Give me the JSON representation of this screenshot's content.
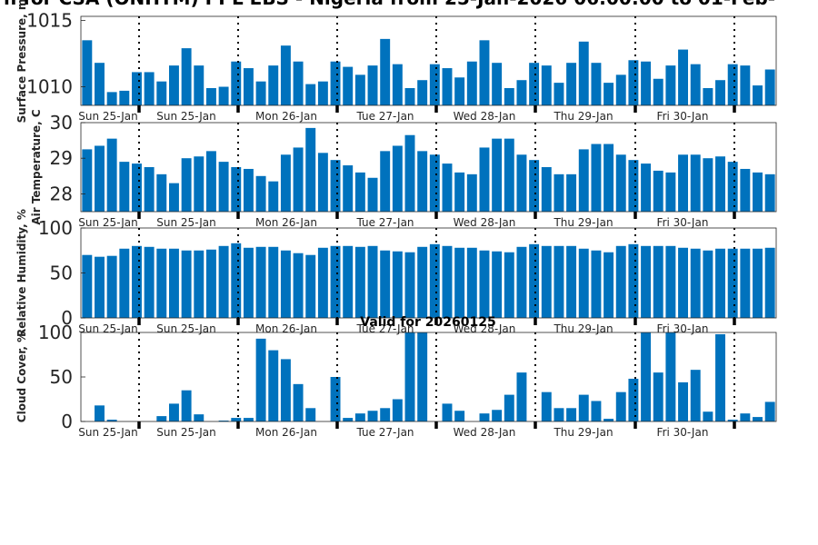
{
  "chart_data": {
    "title": "n for CSA (ONHTM) PPL EBS  - Nigeria from 25-Jan-2026 06:00:00 to 01-Feb-",
    "subtitle": "Valid for 20260125",
    "type": "bar",
    "bar_color": "#0072BD",
    "x_labels": [
      "Sun 25-Jan",
      "Sun 25-Jan",
      "Mon 26-Jan",
      "Tue 27-Jan",
      "Wed 28-Jan",
      "Thu 29-Jan",
      "Fri 30-Jan"
    ],
    "panels": [
      {
        "ylabel": "Surface Pressure, m",
        "ylim": [
          1008.6,
          1015.3
        ],
        "yticks": [
          1010,
          1015
        ],
        "yticklabels": [
          "1010",
          "1015"
        ],
        "values": [
          1013.5,
          1011.8,
          1009.6,
          1009.7,
          1011.1,
          1011.1,
          1010.4,
          1011.6,
          1012.9,
          1011.6,
          1009.9,
          1010.0,
          1011.9,
          1011.4,
          1010.4,
          1011.6,
          1013.1,
          1011.9,
          1010.2,
          1010.4,
          1011.9,
          1011.5,
          1010.9,
          1011.6,
          1013.6,
          1011.7,
          1009.9,
          1010.5,
          1011.7,
          1011.4,
          1010.7,
          1011.9,
          1013.5,
          1011.8,
          1009.9,
          1010.5,
          1011.8,
          1011.6,
          1010.3,
          1011.8,
          1013.4,
          1011.8,
          1010.3,
          1010.9,
          1012.0,
          1011.9,
          1010.6,
          1011.6,
          1012.8,
          1011.7,
          1009.9,
          1010.5,
          1011.7,
          1011.6,
          1010.1,
          1011.3
        ]
      },
      {
        "ylabel": "Air Temperature, C",
        "ylim": [
          27.5,
          30
        ],
        "yticks": [
          28,
          29,
          30
        ],
        "yticklabels": [
          "28",
          "29",
          "30"
        ],
        "values": [
          29.25,
          29.35,
          29.55,
          28.9,
          28.85,
          28.75,
          28.55,
          28.3,
          29.0,
          29.05,
          29.2,
          28.9,
          28.75,
          28.7,
          28.5,
          28.35,
          29.1,
          29.3,
          29.85,
          29.15,
          28.95,
          28.8,
          28.6,
          28.45,
          29.2,
          29.35,
          29.65,
          29.2,
          29.1,
          28.85,
          28.6,
          28.55,
          29.3,
          29.55,
          29.55,
          29.1,
          28.95,
          28.75,
          28.55,
          28.55,
          29.25,
          29.4,
          29.4,
          29.1,
          28.95,
          28.85,
          28.65,
          28.6,
          29.1,
          29.1,
          29.0,
          29.05,
          28.9,
          28.7,
          28.6,
          28.55
        ]
      },
      {
        "ylabel": "Relative Humidity, %",
        "ylim": [
          0,
          100
        ],
        "yticks": [
          0,
          50,
          100
        ],
        "yticklabels": [
          "0",
          "50",
          "100"
        ],
        "values": [
          70,
          68,
          69,
          77,
          80,
          79,
          77,
          77,
          75,
          75,
          76,
          80,
          83,
          78,
          79,
          79,
          75,
          72,
          70,
          78,
          80,
          80,
          79,
          80,
          75,
          74,
          73,
          79,
          82,
          80,
          78,
          78,
          75,
          74,
          73,
          79,
          82,
          80,
          80,
          80,
          77,
          75,
          73,
          80,
          82,
          80,
          80,
          80,
          78,
          77,
          75,
          77,
          77,
          77,
          77,
          78
        ]
      },
      {
        "ylabel": "Cloud Cover, %",
        "ylim": [
          0,
          100
        ],
        "yticks": [
          0,
          50,
          100
        ],
        "yticklabels": [
          "0",
          "50",
          "100"
        ],
        "values": [
          0,
          18,
          2,
          0,
          0,
          0,
          6,
          20,
          35,
          8,
          0,
          1,
          4,
          4,
          93,
          80,
          70,
          42,
          15,
          0,
          50,
          4,
          9,
          12,
          15,
          25,
          100,
          100,
          0,
          20,
          12,
          0,
          9,
          13,
          30,
          55,
          0,
          33,
          15,
          15,
          30,
          23,
          3,
          33,
          48,
          100,
          55,
          100,
          44,
          58,
          11,
          98,
          2,
          9,
          5,
          22
        ]
      }
    ]
  }
}
